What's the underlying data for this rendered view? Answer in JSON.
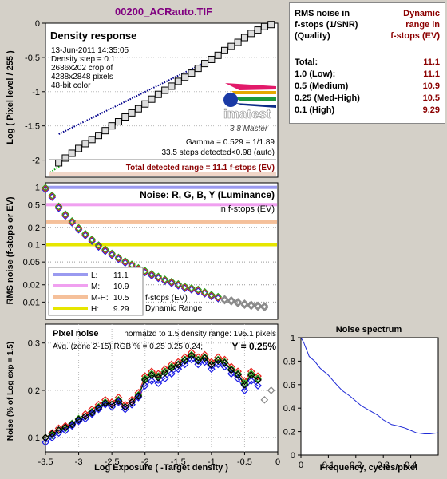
{
  "file_title": "00200_ACRauto.TIF",
  "colors": {
    "panel_bg": "#d4d0c8",
    "plot_bg": "#ffffff",
    "title_color": "#800080",
    "value_color": "#8b0000",
    "red": "#e8211b",
    "green": "#1fa61f",
    "blue": "#1a1ae6",
    "gray": "#707070"
  },
  "table": {
    "header_left": [
      "RMS noise in",
      "f-stops (1/SNR)",
      "(Quality)"
    ],
    "header_right": [
      "Dynamic",
      "range in",
      "f-stops (EV)"
    ],
    "rows": [
      {
        "label": "Total:",
        "value": "11.1"
      },
      {
        "label": "1.0  (Low):",
        "value": "11.1"
      },
      {
        "label": "0.5  (Medium)",
        "value": "10.9"
      },
      {
        "label": "0.25 (Med-High)",
        "value": "10.5"
      },
      {
        "label": "0.1  (High)",
        "value": "9.29"
      }
    ]
  },
  "density_panel": {
    "title": "Density response",
    "info_lines": [
      "13-Jun-2011 14:35:05",
      "Density step = 0.1",
      "2686x202 crop of",
      "4288x2848 pixels",
      "48-bit color"
    ],
    "logo_text": "imatest",
    "logo_sub": "3.8  Master",
    "gamma_text": "Gamma = 0.529 = 1/1.89",
    "steps_text": "33.5 steps detected<0.98 (auto)",
    "total_range_text": "Total detected range = 11.1 f-stops (EV)",
    "ylabel": "Log ( Pixel level / 255 )",
    "yticks": [
      "0",
      "-0.5",
      "-1",
      "-1.5",
      "-2"
    ]
  },
  "noise_panel": {
    "title": "Noise: R, G, B, Y (Luminance)",
    "subtitle": "in f-stops (EV)",
    "ylabel": "RMS noise (f-stops or EV)",
    "yticks": [
      "1",
      "0.5",
      "0.2",
      "0.1",
      "0.05",
      "0.02",
      "0.01"
    ],
    "legend": [
      {
        "label": "L:",
        "value": "11.1",
        "color": "#9a9af0"
      },
      {
        "label": "M:",
        "value": "10.9",
        "color": "#f0a0f0"
      },
      {
        "label": "M-H:",
        "value": "10.5",
        "color": "#f5c09a"
      },
      {
        "label": "H:",
        "value": "9.29",
        "color": "#e6e600"
      }
    ],
    "legend_note": [
      "f-stops (EV)",
      "Dynamic Range"
    ]
  },
  "pixel_noise_panel": {
    "title": "Pixel noise",
    "norm_text": "normalzd to 1.5 density range: 195.1 pixels",
    "avg_text": "Avg. (zone 2-15) RGB % = 0.25  0.25  0.24;",
    "y_text": "Y = 0.25%",
    "ylabel": "Noise (% of Log exp = 1.5)",
    "xlabel": "Log Exposure ( -Target density )",
    "yticks": [
      "0.3",
      "0.2",
      "0.1"
    ],
    "xticks": [
      "-3.5",
      "-3",
      "-2.5",
      "-2",
      "-1.5",
      "-1",
      "-0.5",
      "0"
    ]
  },
  "spectrum_panel": {
    "title": "Noise spectrum",
    "xlabel": "Frequency, cycles/pixel",
    "yticks": [
      "1",
      "0.8",
      "0.6",
      "0.4",
      "0.2",
      "0"
    ],
    "xticks": [
      "0",
      "0.1",
      "0.2",
      "0.3",
      "0.4"
    ]
  },
  "chart_data": [
    {
      "type": "line",
      "name": "density_response",
      "x": [
        -3.3,
        -3.2,
        -3.1,
        -3.0,
        -2.9,
        -2.8,
        -2.7,
        -2.6,
        -2.5,
        -2.4,
        -2.3,
        -2.2,
        -2.1,
        -2.0,
        -1.9,
        -1.8,
        -1.7,
        -1.6,
        -1.5,
        -1.4,
        -1.3,
        -1.2,
        -1.1,
        -1.0,
        -0.9,
        -0.8,
        -0.7,
        -0.6,
        -0.5,
        -0.4,
        -0.3,
        -0.2,
        -0.1
      ],
      "y": [
        -2.04,
        -1.97,
        -1.9,
        -1.83,
        -1.76,
        -1.7,
        -1.64,
        -1.57,
        -1.5,
        -1.44,
        -1.37,
        -1.31,
        -1.25,
        -1.18,
        -1.11,
        -1.04,
        -0.98,
        -0.92,
        -0.85,
        -0.79,
        -0.73,
        -0.66,
        -0.59,
        -0.53,
        -0.47,
        -0.4,
        -0.34,
        -0.28,
        -0.21,
        -0.15,
        -0.1,
        -0.05,
        -0.02
      ],
      "fit_line": {
        "x": [
          -3.3,
          -1.15
        ],
        "y": [
          -1.62,
          -0.6
        ]
      },
      "ylim": [
        -2.25,
        0
      ]
    },
    {
      "type": "line",
      "name": "rms_noise_fstops",
      "x": [
        -3.5,
        -3.4,
        -3.3,
        -3.2,
        -3.1,
        -3.0,
        -2.9,
        -2.8,
        -2.7,
        -2.6,
        -2.5,
        -2.4,
        -2.3,
        -2.2,
        -2.1,
        -2.0,
        -1.9,
        -1.8,
        -1.7,
        -1.6,
        -1.5,
        -1.4,
        -1.3,
        -1.2,
        -1.1,
        -1.0,
        -0.9,
        -0.8,
        -0.7,
        -0.6,
        -0.5,
        -0.4,
        -0.3,
        -0.2
      ],
      "y": [
        0.95,
        0.7,
        0.45,
        0.33,
        0.25,
        0.19,
        0.15,
        0.12,
        0.095,
        0.08,
        0.068,
        0.058,
        0.05,
        0.044,
        0.038,
        0.034,
        0.03,
        0.027,
        0.024,
        0.022,
        0.02,
        0.018,
        0.017,
        0.016,
        0.0145,
        0.013,
        0.012,
        0.011,
        0.0105,
        0.0098,
        0.0092,
        0.0088,
        0.0085,
        0.0083
      ],
      "thresholds": [
        1.0,
        0.5,
        0.25,
        0.1
      ],
      "yscale": "log",
      "ylim": [
        0.005,
        1.2
      ]
    },
    {
      "type": "line",
      "name": "pixel_noise_percent",
      "x": [
        -3.5,
        -3.4,
        -3.3,
        -3.2,
        -3.1,
        -3.0,
        -2.9,
        -2.8,
        -2.7,
        -2.6,
        -2.5,
        -2.4,
        -2.3,
        -2.2,
        -2.1,
        -2.0,
        -1.9,
        -1.8,
        -1.7,
        -1.6,
        -1.5,
        -1.4,
        -1.3,
        -1.2,
        -1.1,
        -1.0,
        -0.9,
        -0.8,
        -0.7,
        -0.6,
        -0.5,
        -0.4,
        -0.3
      ],
      "series": [
        {
          "name": "R",
          "values": [
            0.1,
            0.11,
            0.12,
            0.125,
            0.13,
            0.14,
            0.15,
            0.16,
            0.17,
            0.18,
            0.175,
            0.185,
            0.17,
            0.18,
            0.195,
            0.23,
            0.24,
            0.235,
            0.245,
            0.255,
            0.26,
            0.27,
            0.28,
            0.27,
            0.275,
            0.26,
            0.27,
            0.265,
            0.25,
            0.24,
            0.22,
            0.24,
            0.23
          ]
        },
        {
          "name": "G",
          "values": [
            0.1,
            0.105,
            0.115,
            0.12,
            0.13,
            0.14,
            0.145,
            0.155,
            0.165,
            0.175,
            0.17,
            0.18,
            0.165,
            0.175,
            0.19,
            0.225,
            0.235,
            0.23,
            0.24,
            0.25,
            0.255,
            0.265,
            0.275,
            0.265,
            0.27,
            0.255,
            0.265,
            0.26,
            0.245,
            0.235,
            0.215,
            0.235,
            0.225
          ]
        },
        {
          "name": "B",
          "values": [
            0.09,
            0.1,
            0.11,
            0.115,
            0.125,
            0.135,
            0.14,
            0.15,
            0.16,
            0.17,
            0.165,
            0.175,
            0.16,
            0.17,
            0.185,
            0.21,
            0.22,
            0.215,
            0.225,
            0.235,
            0.245,
            0.255,
            0.265,
            0.255,
            0.26,
            0.245,
            0.255,
            0.25,
            0.235,
            0.225,
            0.2,
            0.22,
            0.21
          ]
        },
        {
          "name": "Y",
          "values": [
            0.1,
            0.108,
            0.116,
            0.122,
            0.128,
            0.138,
            0.145,
            0.153,
            0.163,
            0.173,
            0.17,
            0.178,
            0.165,
            0.175,
            0.188,
            0.222,
            0.232,
            0.227,
            0.237,
            0.247,
            0.254,
            0.263,
            0.273,
            0.263,
            0.268,
            0.254,
            0.263,
            0.258,
            0.243,
            0.233,
            0.212,
            0.232,
            0.222
          ]
        }
      ],
      "ylim": [
        0.07,
        0.34
      ],
      "xlim": [
        -3.5,
        0
      ]
    },
    {
      "type": "line",
      "name": "noise_spectrum",
      "x": [
        0,
        0.01,
        0.02,
        0.03,
        0.05,
        0.07,
        0.1,
        0.13,
        0.15,
        0.18,
        0.2,
        0.22,
        0.25,
        0.28,
        0.3,
        0.33,
        0.35,
        0.38,
        0.4,
        0.42,
        0.45,
        0.47,
        0.5
      ],
      "y": [
        1.0,
        0.96,
        0.9,
        0.84,
        0.8,
        0.74,
        0.68,
        0.6,
        0.55,
        0.5,
        0.46,
        0.42,
        0.38,
        0.34,
        0.3,
        0.26,
        0.25,
        0.23,
        0.21,
        0.19,
        0.18,
        0.18,
        0.19
      ],
      "ylim": [
        0,
        1
      ],
      "xlim": [
        0,
        0.5
      ]
    }
  ]
}
